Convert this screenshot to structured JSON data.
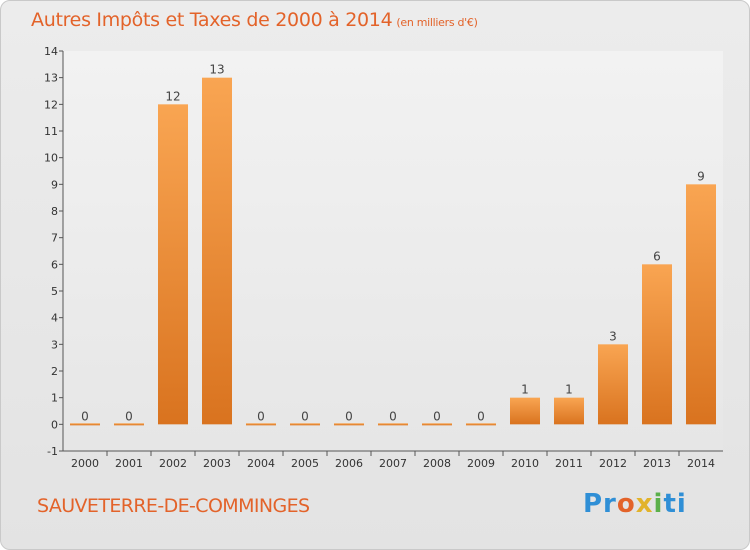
{
  "header": {
    "title": "Autres Impôts et Taxes de 2000 à 2014",
    "unit": "(en milliers d'€)"
  },
  "footer": {
    "commune": "SAUVETERRE-DE-COMMINGES",
    "logo_parts": [
      "Pr",
      "o",
      "x",
      "i",
      "ti"
    ]
  },
  "colors": {
    "bar_light": "#f9a552",
    "bar_dark": "#d9731f",
    "title": "#e3632a"
  },
  "chart_data": {
    "type": "bar",
    "categories": [
      "2000",
      "2001",
      "2002",
      "2003",
      "2004",
      "2005",
      "2006",
      "2007",
      "2008",
      "2009",
      "2010",
      "2011",
      "2012",
      "2013",
      "2014"
    ],
    "values": [
      0,
      0,
      12,
      13,
      0,
      0,
      0,
      0,
      0,
      0,
      1,
      1,
      3,
      6,
      9
    ],
    "title": "Autres Impôts et Taxes de 2000 à 2014",
    "subtitle": "(en milliers d'€)",
    "xlabel": "",
    "ylabel": "",
    "ylim": [
      -1,
      14
    ],
    "yticks": [
      "-1",
      "0",
      "1",
      "2",
      "3",
      "4",
      "5",
      "6",
      "7",
      "8",
      "9",
      "10",
      "11",
      "12",
      "13",
      "14"
    ],
    "grid": false,
    "legend": "none"
  }
}
